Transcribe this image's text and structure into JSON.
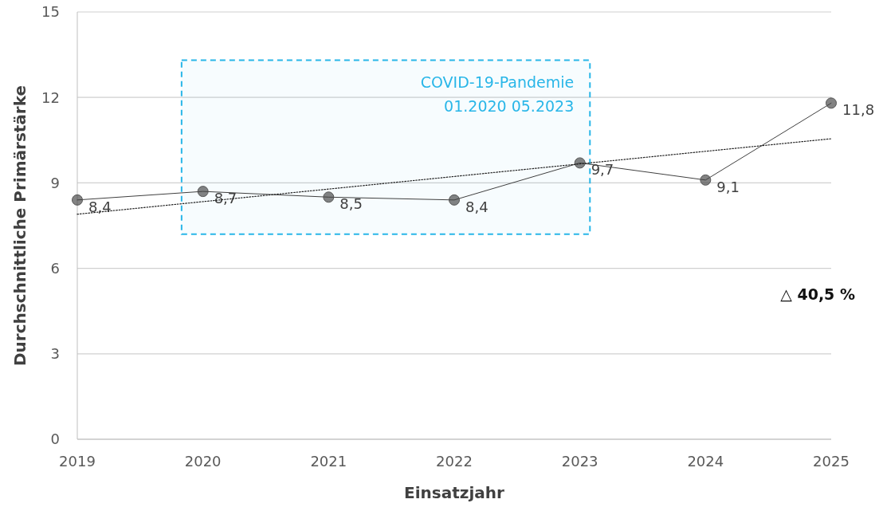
{
  "chart_data": {
    "type": "line",
    "xlabel": "Einsatzjahr",
    "ylabel": "Durchschnittliche Primärstärke",
    "x": [
      2019,
      2020,
      2021,
      2022,
      2023,
      2024,
      2025
    ],
    "series": [
      {
        "type": "line",
        "color": "#404040",
        "marker": "circle",
        "line_style": "solid",
        "values": [
          8.4,
          8.7,
          8.5,
          8.4,
          9.7,
          9.1,
          11.8
        ],
        "value_labels": [
          "8,4",
          "8,7",
          "8,5",
          "8,4",
          "9,7",
          "9,1",
          "11,8"
        ]
      },
      {
        "type": "line",
        "color": "#202020",
        "marker": "none",
        "line_style": "dotted",
        "x": [
          2019,
          2025
        ],
        "values": [
          7.9,
          10.55
        ]
      }
    ],
    "xlim": [
      2019,
      2025
    ],
    "xticks": [
      2019,
      2020,
      2021,
      2022,
      2023,
      2024,
      2025
    ],
    "ylim": [
      0,
      15
    ],
    "yticks": [
      0,
      3,
      6,
      9,
      12,
      15
    ],
    "grid": "y",
    "bands": [
      {
        "axis": "x",
        "from": 2019.83,
        "to": 2023.08,
        "label": "COVID-19-Pandemie",
        "color": "#29b6e8"
      }
    ],
    "annotations": [
      "01.2020  05.2023",
      "△ 40,5 %"
    ]
  }
}
